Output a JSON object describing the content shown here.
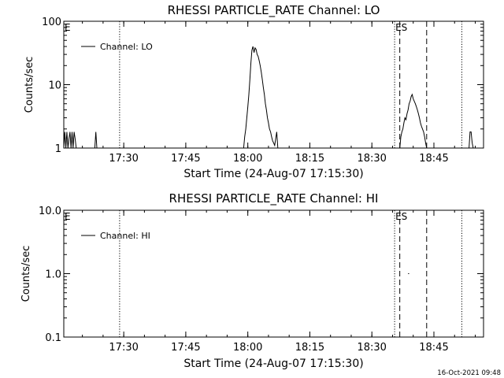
{
  "chart_data": [
    {
      "type": "line",
      "title": "RHESSI PARTICLE_RATE Channel: LO",
      "xlabel": "Start Time (24-Aug-07 17:15:30)",
      "ylabel": "Counts/sec",
      "yscale": "log",
      "ylim": [
        1,
        100
      ],
      "xlim": [
        "17:15:30",
        "18:57:00"
      ],
      "x_ticks": [
        "17:30",
        "17:45",
        "18:00",
        "18:15",
        "18:30",
        "18:45"
      ],
      "y_ticks": [
        "1",
        "10",
        "100"
      ],
      "legend": "top-left",
      "series": [
        {
          "name": "Channel: LO",
          "x": [
            "17:15:30",
            "17:15:45",
            "17:16:00",
            "17:16:15",
            "17:16:30",
            "17:16:45",
            "17:17:00",
            "17:17:15",
            "17:17:30",
            "17:17:45",
            "17:18:00",
            "17:18:15",
            "17:18:30",
            "17:23:00",
            "17:23:15",
            "17:23:30",
            "17:59:00",
            "17:59:15",
            "17:59:30",
            "17:59:45",
            "18:00:00",
            "18:00:15",
            "18:00:30",
            "18:00:45",
            "18:01:00",
            "18:01:15",
            "18:01:30",
            "18:01:45",
            "18:02:00",
            "18:02:15",
            "18:02:30",
            "18:02:45",
            "18:03:00",
            "18:03:15",
            "18:03:30",
            "18:03:45",
            "18:04:00",
            "18:04:15",
            "18:04:30",
            "18:04:45",
            "18:05:00",
            "18:05:15",
            "18:05:30",
            "18:05:45",
            "18:06:00",
            "18:06:15",
            "18:06:30",
            "18:06:45",
            "18:07:00",
            "18:07:15",
            "18:36:45",
            "18:37:00",
            "18:37:15",
            "18:37:30",
            "18:37:45",
            "18:38:00",
            "18:38:15",
            "18:38:30",
            "18:38:45",
            "18:39:00",
            "18:39:15",
            "18:39:30",
            "18:39:45",
            "18:40:00",
            "18:40:15",
            "18:40:30",
            "18:40:45",
            "18:41:00",
            "18:41:15",
            "18:41:30",
            "18:41:45",
            "18:42:00",
            "18:42:15",
            "18:42:30",
            "18:42:45",
            "18:43:00",
            "18:43:15",
            "18:53:30",
            "18:53:45",
            "18:54:00",
            "18:54:15",
            "18:54:30"
          ],
          "y": [
            1,
            1.8,
            1,
            1.8,
            1,
            1.4,
            1.8,
            1,
            1.8,
            1,
            1.8,
            1.4,
            1,
            1,
            1.8,
            1,
            1,
            1.5,
            2,
            3,
            4.5,
            7,
            12,
            22,
            35,
            40,
            32,
            38,
            36,
            30,
            28,
            24,
            20,
            16,
            12,
            9,
            7,
            5,
            4,
            3,
            2.5,
            2,
            1.8,
            1.5,
            1.3,
            1.2,
            1.1,
            1.4,
            1.8,
            1,
            1,
            1.5,
            1.8,
            2,
            2.5,
            3,
            2.8,
            3.5,
            4,
            5,
            5.5,
            6.5,
            7,
            6,
            5.5,
            5,
            4.5,
            4,
            3.5,
            3,
            2.5,
            2.2,
            2,
            1.8,
            1.5,
            1.2,
            1,
            1,
            1.8,
            1.8,
            1.2,
            1
          ],
          "segments_break_before": [
            13,
            16,
            50,
            77
          ]
        }
      ],
      "vertical_lines": [
        {
          "x": "17:29:00",
          "style": "dotted"
        },
        {
          "x": "18:35:30",
          "style": "dotted"
        },
        {
          "x": "18:36:45",
          "style": "dashed"
        },
        {
          "x": "18:43:15",
          "style": "dashed"
        },
        {
          "x": "18:51:45",
          "style": "dotted"
        }
      ],
      "markers": [
        {
          "label": "E",
          "x": "17:15:30"
        },
        {
          "label": "ES",
          "x": "18:35:30"
        }
      ]
    },
    {
      "type": "line",
      "title": "RHESSI PARTICLE_RATE Channel: HI",
      "xlabel": "Start Time (24-Aug-07 17:15:30)",
      "ylabel": "Counts/sec",
      "yscale": "log",
      "ylim": [
        0.1,
        10
      ],
      "xlim": [
        "17:15:30",
        "18:57:00"
      ],
      "x_ticks": [
        "17:30",
        "17:45",
        "18:00",
        "18:15",
        "18:30",
        "18:45"
      ],
      "y_ticks": [
        "0.1",
        "1.0",
        "10.0"
      ],
      "legend": "top-left",
      "series": [
        {
          "name": "Channel: HI",
          "x": [
            "18:38:45",
            "18:39:00"
          ],
          "y": [
            1,
            1
          ]
        }
      ],
      "vertical_lines": [
        {
          "x": "17:29:00",
          "style": "dotted"
        },
        {
          "x": "18:35:30",
          "style": "dotted"
        },
        {
          "x": "18:36:45",
          "style": "dashed"
        },
        {
          "x": "18:43:15",
          "style": "dashed"
        },
        {
          "x": "18:51:45",
          "style": "dotted"
        }
      ],
      "markers": [
        {
          "label": "E",
          "x": "17:15:30"
        },
        {
          "label": "ES",
          "x": "18:35:30"
        }
      ]
    }
  ],
  "footer": {
    "timestamp": "16-Oct-2021 09:48"
  }
}
